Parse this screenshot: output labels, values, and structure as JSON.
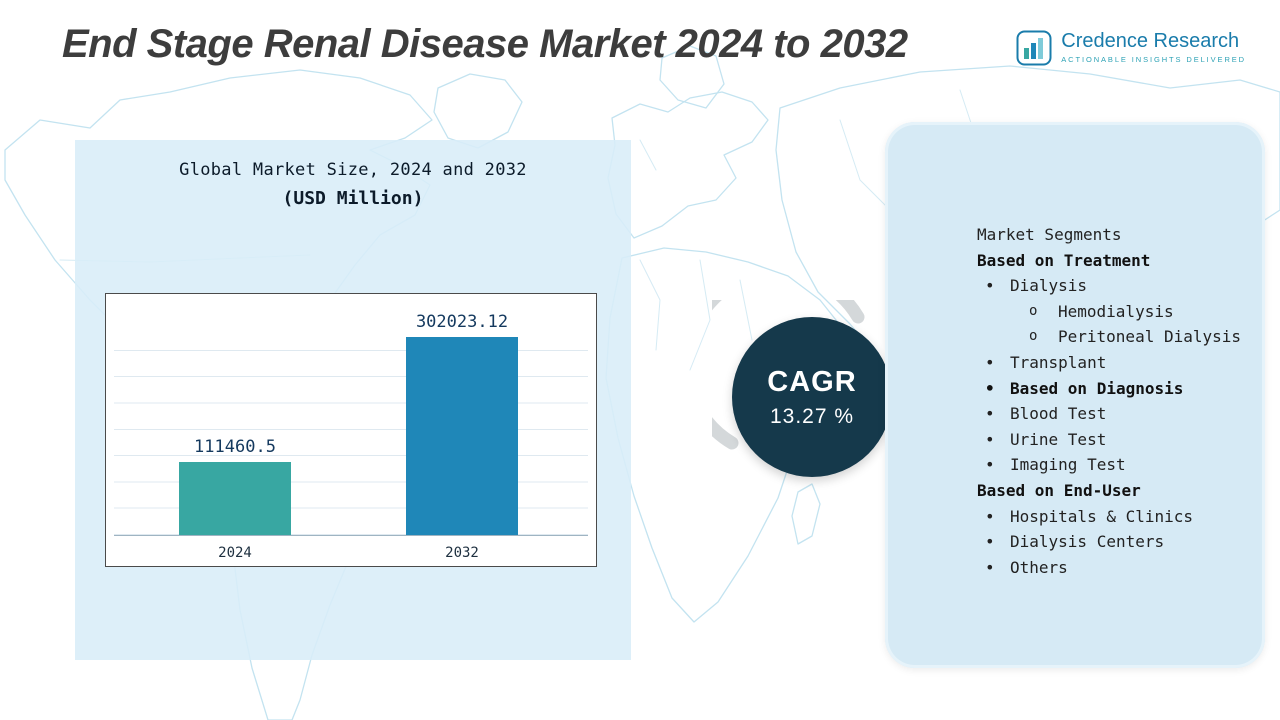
{
  "page": {
    "title": "End Stage Renal Disease Market 2024 to 2032"
  },
  "logo": {
    "brand": "Credence Research",
    "tagline": "Actionable Insights Delivered"
  },
  "chart_data": {
    "type": "bar",
    "title": "Global Market Size, 2024 and 2032",
    "subtitle": "(USD Million)",
    "categories": [
      "2024",
      "2032"
    ],
    "values": [
      111460.5,
      302023.12
    ],
    "value_labels": [
      "111460.5",
      "302023.12"
    ],
    "bar_colors": [
      "#38a7a2",
      "#1f87b8"
    ],
    "ylim": [
      0,
      320000
    ],
    "grid": true,
    "legend": false
  },
  "cagr": {
    "label": "CAGR",
    "value": "13.27 %"
  },
  "segments": {
    "heading": "Market Segments",
    "items": [
      {
        "text": "Based on Treatment",
        "bold": true,
        "bullet": "none"
      },
      {
        "text": "Dialysis",
        "bold": false,
        "bullet": "dot"
      },
      {
        "text": "Hemodialysis",
        "bold": false,
        "bullet": "circle"
      },
      {
        "text": "Peritoneal Dialysis",
        "bold": false,
        "bullet": "circle"
      },
      {
        "text": "Transplant",
        "bold": false,
        "bullet": "dot"
      },
      {
        "text": "Based on Diagnosis",
        "bold": true,
        "bullet": "dot"
      },
      {
        "text": "Blood Test",
        "bold": false,
        "bullet": "dot"
      },
      {
        "text": "Urine Test",
        "bold": false,
        "bullet": "dot"
      },
      {
        "text": "Imaging Test",
        "bold": false,
        "bullet": "dot"
      },
      {
        "text": "Based on End-User",
        "bold": true,
        "bullet": "none"
      },
      {
        "text": "Hospitals & Clinics",
        "bold": false,
        "bullet": "dot"
      },
      {
        "text": "Dialysis Centers",
        "bold": false,
        "bullet": "dot"
      },
      {
        "text": "Others",
        "bold": false,
        "bullet": "dot"
      }
    ]
  },
  "colors": {
    "accent_teal": "#38a7a2",
    "accent_blue": "#1f87b8",
    "cagr_circle": "#15394b",
    "panel_blue": "#d6eaf5",
    "map_line": "#c3e3f0"
  }
}
